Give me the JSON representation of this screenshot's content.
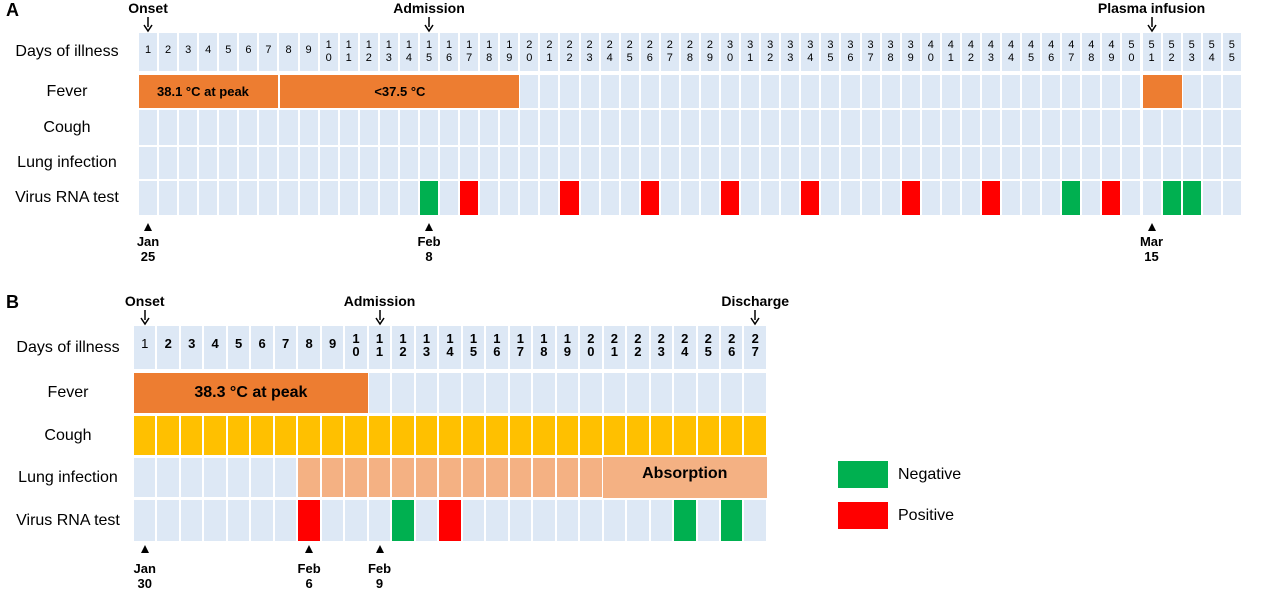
{
  "chart_data": [
    {
      "type": "table",
      "panel": "A",
      "rows": [
        "Days of illness",
        "Fever",
        "Cough",
        "Lung infection",
        "Virus RNA test"
      ],
      "days": 55,
      "events": [
        {
          "label": "Onset",
          "day": 1
        },
        {
          "label": "Admission",
          "day": 15
        },
        {
          "label": "Plasma infusion",
          "day": 51
        }
      ],
      "fever": [
        {
          "label": "38.1 °C at peak",
          "start": 1,
          "end": 7
        },
        {
          "label": "<37.5 °C",
          "start": 8,
          "end": 19
        },
        {
          "label": "",
          "start": 51,
          "end": 52
        }
      ],
      "cough": [],
      "lung_infection": [],
      "rna_tests": [
        {
          "day": 15,
          "result": "Negative"
        },
        {
          "day": 17,
          "result": "Positive"
        },
        {
          "day": 22,
          "result": "Positive"
        },
        {
          "day": 26,
          "result": "Positive"
        },
        {
          "day": 30,
          "result": "Positive"
        },
        {
          "day": 34,
          "result": "Positive"
        },
        {
          "day": 39,
          "result": "Positive"
        },
        {
          "day": 43,
          "result": "Positive"
        },
        {
          "day": 47,
          "result": "Negative"
        },
        {
          "day": 49,
          "result": "Positive"
        },
        {
          "day": 52,
          "result": "Negative"
        },
        {
          "day": 53,
          "result": "Negative"
        }
      ],
      "dates": [
        {
          "day": 1,
          "month": "Jan",
          "date": "25"
        },
        {
          "day": 15,
          "month": "Feb",
          "date": "8"
        },
        {
          "day": 51,
          "month": "Mar",
          "date": "15"
        }
      ]
    },
    {
      "type": "table",
      "panel": "B",
      "rows": [
        "Days of illness",
        "Fever",
        "Cough",
        "Lung infection",
        "Virus RNA test"
      ],
      "days": 27,
      "events": [
        {
          "label": "Onset",
          "day": 1
        },
        {
          "label": "Admission",
          "day": 11
        },
        {
          "label": "Discharge",
          "day": 27
        }
      ],
      "fever": [
        {
          "label": "38.3 °C  at peak",
          "start": 1,
          "end": 10
        }
      ],
      "cough": {
        "start": 1,
        "end": 27
      },
      "lung_infection": {
        "start": 8,
        "end": 27,
        "label": "Absorption",
        "label_start": 21
      },
      "rna_tests": [
        {
          "day": 8,
          "result": "Positive"
        },
        {
          "day": 12,
          "result": "Negative"
        },
        {
          "day": 14,
          "result": "Positive"
        },
        {
          "day": 24,
          "result": "Negative"
        },
        {
          "day": 26,
          "result": "Negative"
        }
      ],
      "dates": [
        {
          "day": 1,
          "month": "Jan",
          "date": "30"
        },
        {
          "day": 8,
          "month": "Feb",
          "date": "6"
        },
        {
          "day": 11,
          "month": "Feb",
          "date": "9"
        }
      ]
    }
  ],
  "legend": [
    {
      "label": "Negative",
      "color": "#00b050"
    },
    {
      "label": "Positive",
      "color": "#ff0000"
    }
  ],
  "colors": {
    "grid": "#dde8f5",
    "fever": "#ed7d31",
    "cough": "#ffc000",
    "lung": "#f4b183",
    "negative": "#00b050",
    "positive": "#ff0000"
  }
}
